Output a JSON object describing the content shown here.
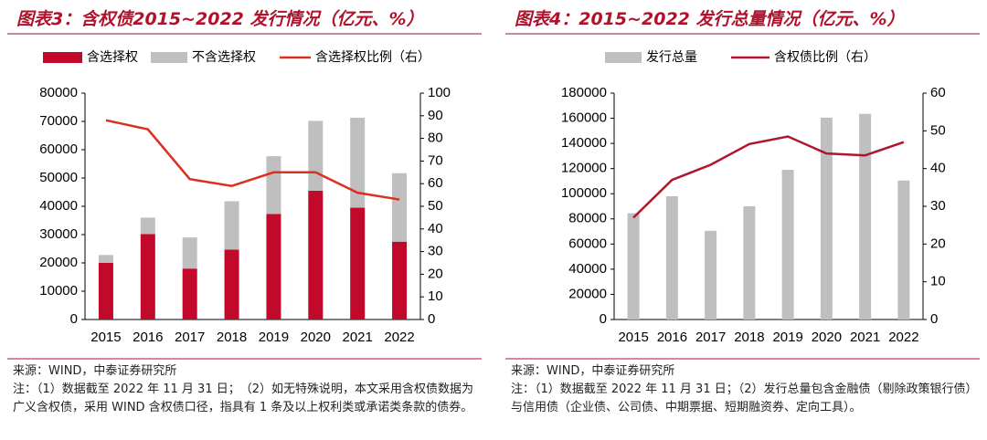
{
  "chart_data": [
    {
      "type": "bar",
      "stacked": true,
      "title": "图表3：含权债2015~2022 发行情况（亿元、%）",
      "categories": [
        "2015",
        "2016",
        "2017",
        "2018",
        "2019",
        "2020",
        "2021",
        "2022"
      ],
      "series": [
        {
          "name": "含选择权",
          "color": "#c0092b",
          "values": [
            20000,
            30200,
            18000,
            24700,
            37300,
            45500,
            39500,
            27500
          ]
        },
        {
          "name": "不含选择权",
          "color": "#bfbfbf",
          "values": [
            2800,
            5800,
            11000,
            17100,
            20400,
            24700,
            31800,
            24200
          ]
        },
        {
          "name": "含选择权比例（右）",
          "color": "#d9301f",
          "axis": "y2",
          "values": [
            88,
            84,
            62,
            59,
            65,
            65,
            56,
            53
          ]
        }
      ],
      "ylim": [
        0,
        80000
      ],
      "yticks": [
        0,
        10000,
        20000,
        30000,
        40000,
        50000,
        60000,
        70000,
        80000
      ],
      "y2lim": [
        0,
        100
      ],
      "y2ticks": [
        0,
        10,
        20,
        30,
        40,
        50,
        60,
        70,
        80,
        90,
        100
      ],
      "source": "来源：WIND，中泰证券研究所",
      "note": "注：（1）数据截至 2022 年 11 月 31 日；　（2）如无特殊说明，本文采用含权债数据为广义含权债，采用 WIND 含权债口径，指具有 1 条及以上权利类或承诺类条款的债券。"
    },
    {
      "type": "bar",
      "stacked": true,
      "title": "图表4：2015~2022 发行总量情况（亿元、%）",
      "categories": [
        "2015",
        "2016",
        "2017",
        "2018",
        "2019",
        "2020",
        "2021",
        "2022"
      ],
      "series": [
        {
          "name": "发行总量",
          "color": "#bfbfbf",
          "values": [
            84500,
            98000,
            70500,
            90000,
            119000,
            160500,
            163500,
            110500
          ]
        },
        {
          "name": "含权债比例（右）",
          "color": "#b0162b",
          "axis": "y2",
          "values": [
            27,
            37,
            41,
            46.5,
            48.5,
            44,
            43.5,
            47
          ]
        }
      ],
      "ylim": [
        0,
        180000
      ],
      "yticks": [
        0,
        20000,
        40000,
        60000,
        80000,
        100000,
        120000,
        140000,
        160000,
        180000
      ],
      "y2lim": [
        0,
        60
      ],
      "y2ticks": [
        0,
        10,
        20,
        30,
        40,
        50,
        60
      ],
      "source": "来源：WIND，中泰证券研究所",
      "note": "注：（1）数据截至 2022 年 11 月 31 日；（2）发行总量包含金融债（剔除政策银行债）与信用债（企业债、公司债、中期票据、短期融资券、定向工具）。"
    }
  ]
}
